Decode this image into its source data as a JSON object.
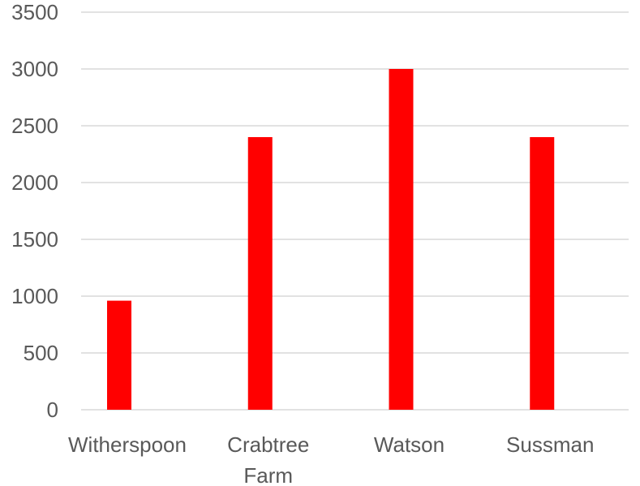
{
  "chart_data": {
    "type": "bar",
    "title": "",
    "xlabel": "",
    "ylabel": "",
    "categories": [
      "Witherspoon",
      "Crabtree Farm",
      "Watson",
      "Sussman"
    ],
    "category_lines": [
      [
        "Witherspoon"
      ],
      [
        "Crabtree",
        "Farm"
      ],
      [
        "Watson"
      ],
      [
        "Sussman"
      ]
    ],
    "values": [
      960,
      2400,
      3000,
      2400
    ],
    "ylim": [
      0,
      3500
    ],
    "yticks": [
      0,
      500,
      1000,
      1500,
      2000,
      2500,
      3000,
      3500
    ],
    "grid": true,
    "legend": "none",
    "bar_color": "#ff0000",
    "grid_color": "#d9d9d9",
    "text_color": "#595959"
  }
}
